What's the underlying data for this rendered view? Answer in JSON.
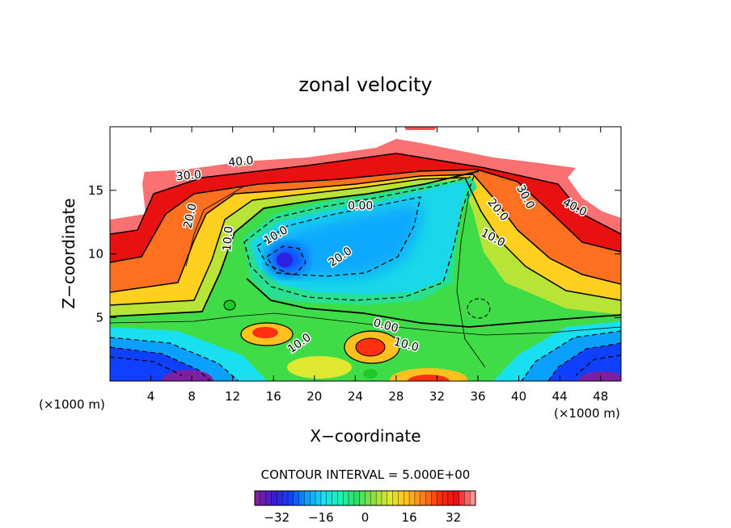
{
  "chart_data": {
    "type": "contour",
    "title": "zonal velocity",
    "xlabel": "X−coordinate",
    "ylabel": "Z−coordinate",
    "x_unit_left": "(×1000 m)",
    "x_unit_right": "(×1000 m)",
    "xlim": [
      0,
      50
    ],
    "ylim": [
      0,
      20
    ],
    "x_ticks": [
      4,
      8,
      12,
      16,
      20,
      24,
      28,
      32,
      36,
      40,
      44,
      48
    ],
    "y_ticks": [
      5,
      10,
      15
    ],
    "contour_interval_label": "CONTOUR INTERVAL = 5.000E+00",
    "colorbar_range": [
      -40,
      40
    ],
    "colorbar_ticks": [
      -32,
      -16,
      0,
      16,
      32
    ],
    "contour_labels": [
      {
        "text": "40.0",
        "x": 12.8,
        "y": 17.3,
        "angle": -5
      },
      {
        "text": "30.0",
        "x": 7.7,
        "y": 16.2,
        "angle": -5
      },
      {
        "text": "20.0",
        "x": 7.8,
        "y": 13.0,
        "angle": -78
      },
      {
        "text": "10.0",
        "x": 11.5,
        "y": 11.2,
        "angle": -85
      },
      {
        "text": "0.00",
        "x": 24.5,
        "y": 13.8,
        "angle": 0
      },
      {
        "text": "10.0",
        "x": 16.2,
        "y": 11.5,
        "angle": -30
      },
      {
        "text": "20.0",
        "x": 22.5,
        "y": 9.8,
        "angle": -35
      },
      {
        "text": "0.00",
        "x": 27.0,
        "y": 4.4,
        "angle": 15
      },
      {
        "text": "10.0",
        "x": 29.0,
        "y": 2.9,
        "angle": 15
      },
      {
        "text": "10.0",
        "x": 18.5,
        "y": 3.0,
        "angle": -35
      },
      {
        "text": "10.0",
        "x": 37.5,
        "y": 11.3,
        "angle": 28
      },
      {
        "text": "20.0",
        "x": 38.0,
        "y": 13.5,
        "angle": 50
      },
      {
        "text": "30.0",
        "x": 40.7,
        "y": 14.5,
        "angle": 62
      },
      {
        "text": "40.0",
        "x": 45.5,
        "y": 13.7,
        "angle": 28
      }
    ]
  },
  "colors": {
    "background": "#ffffff",
    "axis": "#000000",
    "colormap": [
      "#7e1ea0",
      "#3a1cd0",
      "#1040ff",
      "#0aa0ff",
      "#18e0f0",
      "#20f0b0",
      "#30e060",
      "#90e040",
      "#e0e830",
      "#ffc020",
      "#ff8020",
      "#ff3010",
      "#e81010",
      "#ff9090"
    ]
  }
}
